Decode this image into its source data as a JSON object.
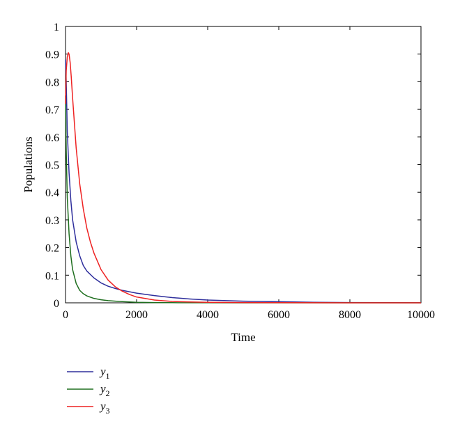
{
  "chart_data": {
    "type": "line",
    "xlabel": "Time",
    "ylabel": "Populations",
    "xlim": [
      0,
      10000
    ],
    "ylim": [
      0,
      1
    ],
    "xticks": [
      0,
      2000,
      4000,
      6000,
      8000,
      10000
    ],
    "yticks": [
      0,
      0.1,
      0.2,
      0.3,
      0.4,
      0.5,
      0.6,
      0.7,
      0.8,
      0.9,
      1
    ],
    "grid": false,
    "legend_position": "below-left",
    "series": [
      {
        "name": "y",
        "subscript": "1",
        "color": "#2e2e9c",
        "x": [
          0,
          20,
          50,
          100,
          150,
          200,
          300,
          400,
          500,
          600,
          800,
          1000,
          1200,
          1400,
          1600,
          1800,
          2000,
          2500,
          3000,
          3500,
          4000,
          5000,
          6000,
          7000,
          8000,
          9000,
          10000
        ],
        "y": [
          0.88,
          0.8,
          0.62,
          0.47,
          0.37,
          0.3,
          0.22,
          0.17,
          0.135,
          0.115,
          0.09,
          0.072,
          0.06,
          0.052,
          0.045,
          0.04,
          0.035,
          0.026,
          0.019,
          0.014,
          0.01,
          0.006,
          0.004,
          0.002,
          0.001,
          0.0005,
          0.0002
        ]
      },
      {
        "name": "y",
        "subscript": "2",
        "color": "#1e6e1e",
        "x": [
          0,
          20,
          50,
          100,
          150,
          200,
          300,
          400,
          500,
          600,
          800,
          1000,
          1200,
          1500,
          2000,
          2500,
          3000,
          4000,
          5000,
          6000,
          8000,
          10000
        ],
        "y": [
          0.75,
          0.55,
          0.38,
          0.25,
          0.17,
          0.12,
          0.07,
          0.045,
          0.033,
          0.025,
          0.016,
          0.011,
          0.008,
          0.005,
          0.002,
          0.001,
          0.0005,
          0.0002,
          0.0001,
          0,
          0,
          0
        ]
      },
      {
        "name": "y",
        "subscript": "3",
        "color": "#ee2222",
        "x": [
          0,
          20,
          50,
          80,
          100,
          130,
          160,
          200,
          300,
          400,
          500,
          600,
          700,
          800,
          1000,
          1200,
          1400,
          1600,
          1800,
          2000,
          2500,
          3000,
          3500,
          4000,
          5000,
          6000,
          8000,
          10000
        ],
        "y": [
          0.72,
          0.84,
          0.89,
          0.905,
          0.9,
          0.87,
          0.82,
          0.74,
          0.56,
          0.43,
          0.34,
          0.27,
          0.22,
          0.18,
          0.12,
          0.082,
          0.058,
          0.042,
          0.03,
          0.021,
          0.01,
          0.005,
          0.003,
          0.002,
          0.001,
          0.0005,
          0.0001,
          0
        ]
      }
    ]
  }
}
